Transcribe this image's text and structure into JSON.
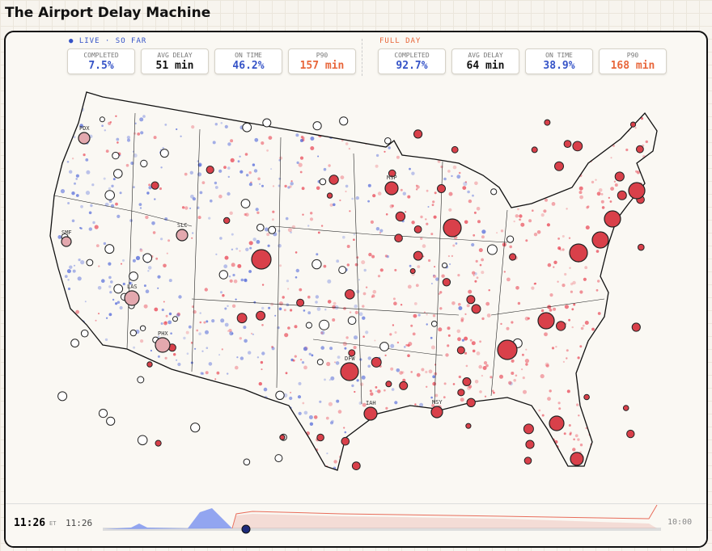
{
  "title": "The Airport Delay Machine",
  "live": {
    "label": "LIVE · SO FAR",
    "stats": [
      {
        "label": "COMPLETED",
        "value": "7.5%"
      },
      {
        "label": "AVG DELAY",
        "value": "51 min"
      },
      {
        "label": "ON TIME",
        "value": "46.2%"
      },
      {
        "label": "P90",
        "value": "157 min"
      }
    ]
  },
  "full_day": {
    "label": "FULL DAY",
    "stats": [
      {
        "label": "COMPLETED",
        "value": "92.7%"
      },
      {
        "label": "AVG DELAY",
        "value": "64 min"
      },
      {
        "label": "ON TIME",
        "value": "38.9%"
      },
      {
        "label": "P90",
        "value": "168 min"
      }
    ]
  },
  "airports": [
    "PDX",
    "SMF",
    "SLC",
    "LAS",
    "PHX",
    "MSP",
    "DFW",
    "IAH",
    "MSY"
  ],
  "timeline": {
    "time": "11:26",
    "zone": "ET",
    "current": "11:26",
    "end": "10:00"
  }
}
